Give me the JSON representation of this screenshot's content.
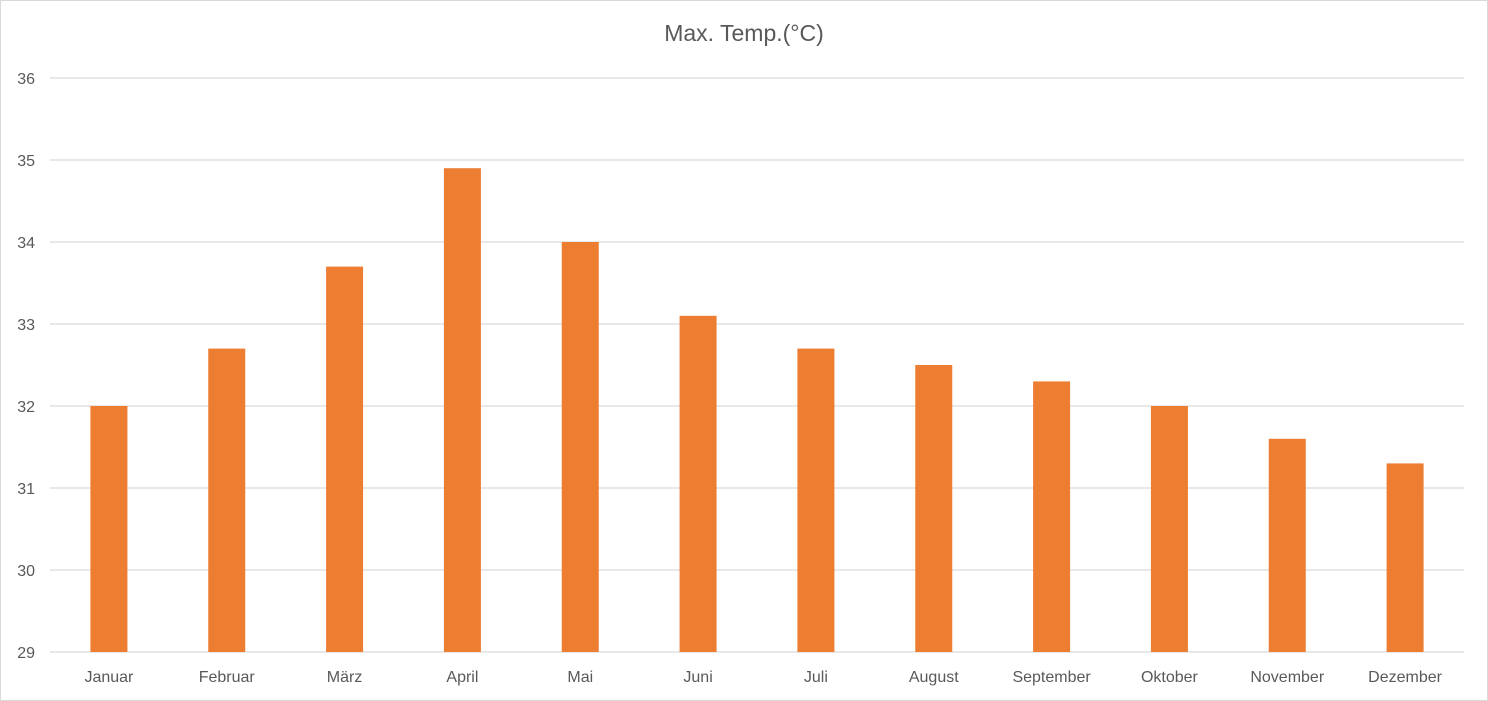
{
  "chart_data": {
    "type": "bar",
    "title": "Max. Temp.(°C)",
    "xlabel": "",
    "ylabel": "",
    "categories": [
      "Januar",
      "Februar",
      "März",
      "April",
      "Mai",
      "Juni",
      "Juli",
      "August",
      "September",
      "Oktober",
      "November",
      "Dezember"
    ],
    "series": [
      {
        "values": [
          32.0,
          32.7,
          33.7,
          34.9,
          34.0,
          33.1,
          32.7,
          32.5,
          32.3,
          32.0,
          31.6,
          31.3
        ]
      }
    ],
    "ylim": [
      29,
      36
    ],
    "yticks": [
      29,
      30,
      31,
      32,
      33,
      34,
      35,
      36
    ],
    "grid": true,
    "legend": "none",
    "bar_color": "#ED7D31",
    "grid_color": "#d9d9d9",
    "text_color": "#595959"
  }
}
